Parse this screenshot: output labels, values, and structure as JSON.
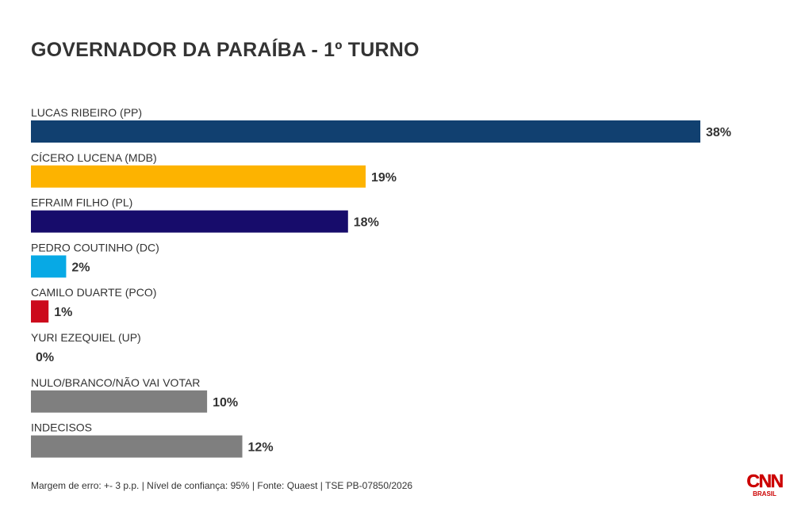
{
  "chart_data": {
    "type": "bar",
    "orientation": "horizontal",
    "title": "GOVERNADOR DA PARAÍBA - 1º TURNO",
    "categories": [
      "LUCAS RIBEIRO (PP)",
      "CÍCERO LUCENA (MDB)",
      "EFRAIM FILHO (PL)",
      "PEDRO COUTINHO (DC)",
      "CAMILO DUARTE (PCO)",
      "YURI EZEQUIEL (UP)",
      "NULO/BRANCO/NÃO VAI VOTAR",
      "INDECISOS"
    ],
    "values": [
      38,
      19,
      18,
      2,
      1,
      0,
      10,
      12
    ],
    "value_labels": [
      "38%",
      "19%",
      "18%",
      "2%",
      "1%",
      "0%",
      "10%",
      "12%"
    ],
    "colors": [
      "#114070",
      "#fdb300",
      "#170c6b",
      "#07a9e5",
      "#cc0a1c",
      "#999999",
      "#7f7f7f",
      "#7f7f7f"
    ],
    "unit": "%",
    "grid": false,
    "legend": "none"
  },
  "footer": {
    "note": "Margem de erro: +- 3 p.p. | Nível de confiança: 95% | Fonte: Quaest | TSE PB-07850/2026"
  },
  "logo": {
    "brand": "CNN",
    "sub": "BRASIL",
    "color": "#cc0000"
  }
}
